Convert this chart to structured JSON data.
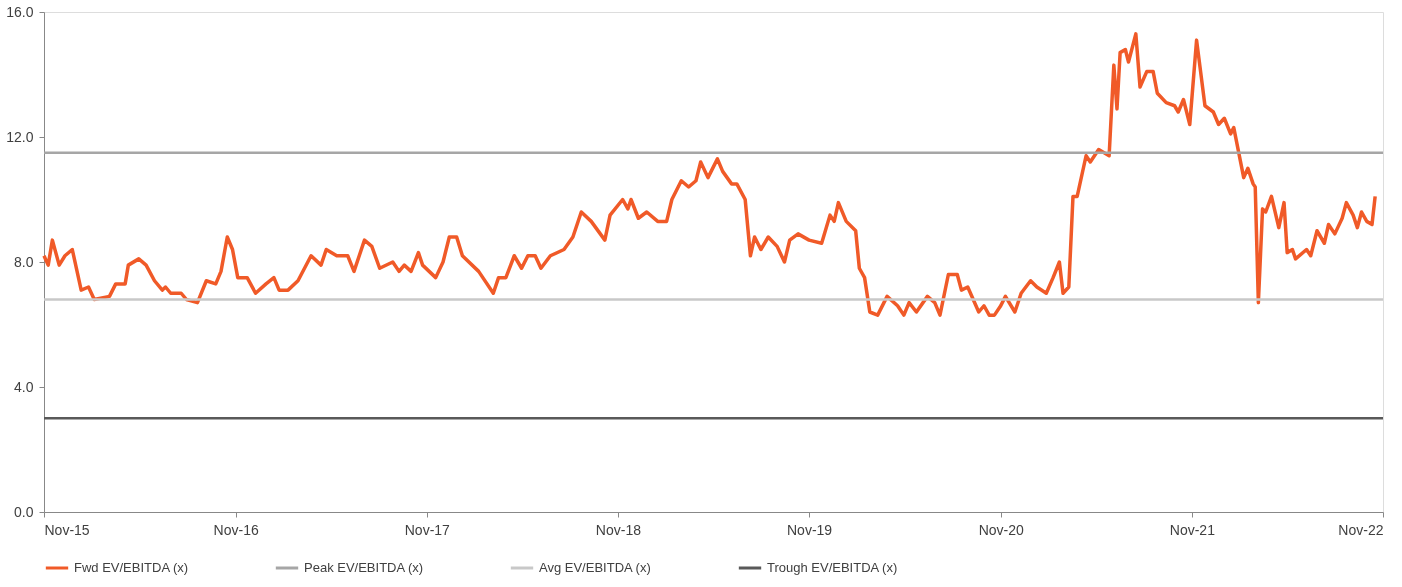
{
  "chart_data": {
    "type": "line",
    "xlim": [
      "2015-11-01",
      "2022-11-01"
    ],
    "xticks": [
      {
        "value": "2015-11-01",
        "label": "Nov-15"
      },
      {
        "value": "2016-11-01",
        "label": "Nov-16"
      },
      {
        "value": "2017-11-01",
        "label": "Nov-17"
      },
      {
        "value": "2018-11-01",
        "label": "Nov-18"
      },
      {
        "value": "2019-11-01",
        "label": "Nov-19"
      },
      {
        "value": "2020-11-01",
        "label": "Nov-20"
      },
      {
        "value": "2021-11-01",
        "label": "Nov-21"
      },
      {
        "value": "2022-11-01",
        "label": "Nov-22"
      }
    ],
    "ylim": [
      0,
      16
    ],
    "yticks": [
      {
        "value": 0,
        "label": "0.0"
      },
      {
        "value": 4,
        "label": "4.0"
      },
      {
        "value": 8,
        "label": "8.0"
      },
      {
        "value": 12,
        "label": "12.0"
      },
      {
        "value": 16,
        "label": "16.0"
      }
    ],
    "grid": false,
    "legend": "bottom",
    "series": [
      {
        "name": "Fwd EV/EBITDA (x)",
        "color": "#f05a28",
        "x": [
          "2015-11-01",
          "2015-11-09",
          "2015-11-17",
          "2015-11-30",
          "2015-12-11",
          "2015-12-25",
          "2016-01-11",
          "2016-01-25",
          "2016-02-05",
          "2016-03-05",
          "2016-03-17",
          "2016-04-04",
          "2016-04-10",
          "2016-04-30",
          "2016-05-14",
          "2016-05-30",
          "2016-06-14",
          "2016-06-20",
          "2016-06-30",
          "2016-07-20",
          "2016-07-30",
          "2016-08-20",
          "2016-09-06",
          "2016-09-24",
          "2016-10-04",
          "2016-10-16",
          "2016-10-26",
          "2016-11-05",
          "2016-11-23",
          "2016-12-09",
          "2016-12-29",
          "2017-01-13",
          "2017-01-23",
          "2017-02-09",
          "2017-02-28",
          "2017-03-25",
          "2017-04-13",
          "2017-04-23",
          "2017-05-13",
          "2017-06-03",
          "2017-06-15",
          "2017-07-05",
          "2017-07-19",
          "2017-08-03",
          "2017-08-28",
          "2017-09-09",
          "2017-09-19",
          "2017-10-02",
          "2017-10-16",
          "2017-10-24",
          "2017-11-18",
          "2017-12-02",
          "2017-12-14",
          "2017-12-28",
          "2018-01-08",
          "2018-02-08",
          "2018-03-08",
          "2018-03-18",
          "2018-04-01",
          "2018-04-17",
          "2018-05-01",
          "2018-05-13",
          "2018-05-27",
          "2018-06-07",
          "2018-06-25",
          "2018-07-21",
          "2018-08-07",
          "2018-08-23",
          "2018-09-11",
          "2018-10-07",
          "2018-10-17",
          "2018-11-10",
          "2018-11-20",
          "2018-11-26",
          "2018-12-10",
          "2018-12-26",
          "2019-01-16",
          "2019-02-02",
          "2019-02-12",
          "2019-03-02",
          "2019-03-16",
          "2019-03-30",
          "2019-04-08",
          "2019-04-22",
          "2019-05-10",
          "2019-05-20",
          "2019-06-06",
          "2019-06-16",
          "2019-07-02",
          "2019-07-12",
          "2019-07-20",
          "2019-08-01",
          "2019-08-15",
          "2019-09-01",
          "2019-09-15",
          "2019-09-25",
          "2019-10-11",
          "2019-11-01",
          "2019-11-25",
          "2019-12-11",
          "2019-12-19",
          "2019-12-27",
          "2020-01-11",
          "2020-01-29",
          "2020-02-05",
          "2020-02-15",
          "2020-02-25",
          "2020-03-11",
          "2020-03-29",
          "2020-04-18",
          "2020-04-30",
          "2020-05-10",
          "2020-05-24",
          "2020-06-14",
          "2020-06-28",
          "2020-07-08",
          "2020-07-24",
          "2020-08-10",
          "2020-08-18",
          "2020-08-30",
          "2020-09-20",
          "2020-09-30",
          "2020-10-10",
          "2020-10-20",
          "2020-11-01",
          "2020-11-10",
          "2020-11-28",
          "2020-12-10",
          "2020-12-28",
          "2021-01-09",
          "2021-01-27",
          "2021-02-09",
          "2021-02-21",
          "2021-02-28",
          "2021-03-11",
          "2021-03-19",
          "2021-03-27",
          "2021-04-13",
          "2021-04-21",
          "2021-05-07",
          "2021-05-27",
          "2021-06-05",
          "2021-06-11",
          "2021-06-17",
          "2021-06-27",
          "2021-07-03",
          "2021-07-17",
          "2021-07-25",
          "2021-08-07",
          "2021-08-19",
          "2021-08-27",
          "2021-09-13",
          "2021-09-29",
          "2021-10-06",
          "2021-10-16",
          "2021-10-28",
          "2021-11-10",
          "2021-11-26",
          "2021-12-12",
          "2021-12-22",
          "2022-01-02",
          "2022-01-14",
          "2022-01-20",
          "2022-02-08",
          "2022-02-16",
          "2022-02-26",
          "2022-03-02",
          "2022-03-08",
          "2022-03-16",
          "2022-03-22",
          "2022-04-02",
          "2022-04-16",
          "2022-04-26",
          "2022-05-02",
          "2022-05-12",
          "2022-05-18",
          "2022-06-08",
          "2022-06-16",
          "2022-06-28",
          "2022-07-12",
          "2022-07-20",
          "2022-08-01",
          "2022-08-15",
          "2022-08-23",
          "2022-09-05",
          "2022-09-13",
          "2022-09-21",
          "2022-10-01",
          "2022-10-11",
          "2022-10-17"
        ],
        "values": [
          8.2,
          7.9,
          8.7,
          7.9,
          8.2,
          8.4,
          7.1,
          7.2,
          6.8,
          6.9,
          7.3,
          7.3,
          7.9,
          8.1,
          7.9,
          7.4,
          7.1,
          7.2,
          7.0,
          7.0,
          6.8,
          6.7,
          7.4,
          7.3,
          7.7,
          8.8,
          8.4,
          7.5,
          7.5,
          7.0,
          7.3,
          7.5,
          7.1,
          7.1,
          7.4,
          8.2,
          7.9,
          8.4,
          8.2,
          8.2,
          7.7,
          8.7,
          8.5,
          7.8,
          8.0,
          7.7,
          7.9,
          7.7,
          8.3,
          7.9,
          7.5,
          8.0,
          8.8,
          8.8,
          8.2,
          7.7,
          7.0,
          7.5,
          7.5,
          8.2,
          7.8,
          8.2,
          8.2,
          7.8,
          8.2,
          8.4,
          8.8,
          9.6,
          9.3,
          8.7,
          9.5,
          10.0,
          9.7,
          10.0,
          9.4,
          9.6,
          9.3,
          9.3,
          10.0,
          10.6,
          10.4,
          10.6,
          11.2,
          10.7,
          11.3,
          10.9,
          10.5,
          10.5,
          10.0,
          8.2,
          8.8,
          8.4,
          8.8,
          8.5,
          8.0,
          8.7,
          8.9,
          8.7,
          8.6,
          9.5,
          9.3,
          9.9,
          9.3,
          9.0,
          7.8,
          7.5,
          6.4,
          6.3,
          6.9,
          6.6,
          6.3,
          6.7,
          6.4,
          6.9,
          6.7,
          6.3,
          7.6,
          7.6,
          7.1,
          7.2,
          6.4,
          6.6,
          6.3,
          6.3,
          6.6,
          6.9,
          6.4,
          7.0,
          7.4,
          7.2,
          7.0,
          7.5,
          8.0,
          7.0,
          7.2,
          10.1,
          10.1,
          11.4,
          11.2,
          11.6,
          11.4,
          14.3,
          12.9,
          14.7,
          14.8,
          14.4,
          15.3,
          13.6,
          14.1,
          14.1,
          13.4,
          13.1,
          13.0,
          12.8,
          13.2,
          12.4,
          15.1,
          13.0,
          12.8,
          12.4,
          12.6,
          12.1,
          12.3,
          10.7,
          11.0,
          10.5,
          10.4,
          6.7,
          9.7,
          9.6,
          10.1,
          9.1,
          9.9,
          8.3,
          8.4,
          8.1,
          8.4,
          8.2,
          9.0,
          8.6,
          9.2,
          8.9,
          9.4,
          9.9,
          9.5,
          9.1,
          9.6,
          9.3,
          9.2,
          10.1
        ]
      },
      {
        "name": "Peak EV/EBITDA (x)",
        "color": "#a6a6a6",
        "x": [
          "2015-11-01",
          "2022-11-01"
        ],
        "values": [
          11.5,
          11.5
        ]
      },
      {
        "name": "Avg EV/EBITDA (x)",
        "color": "#c8c8c8",
        "x": [
          "2015-11-01",
          "2022-11-01"
        ],
        "values": [
          6.8,
          6.8
        ]
      },
      {
        "name": "Trough EV/EBITDA (x)",
        "color": "#595959",
        "x": [
          "2015-11-01",
          "2022-11-01"
        ],
        "values": [
          3.0,
          3.0
        ]
      }
    ]
  }
}
